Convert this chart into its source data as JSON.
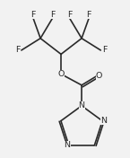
{
  "bg_color": "#f2f2f2",
  "line_color": "#2a2a2a",
  "text_color": "#2a2a2a",
  "line_width": 1.2,
  "font_size": 6.8,
  "figsize": [
    1.45,
    1.76
  ],
  "dpi": 100,
  "xlim": [
    -1.25,
    1.45
  ],
  "ylim": [
    -2.1,
    1.85
  ]
}
